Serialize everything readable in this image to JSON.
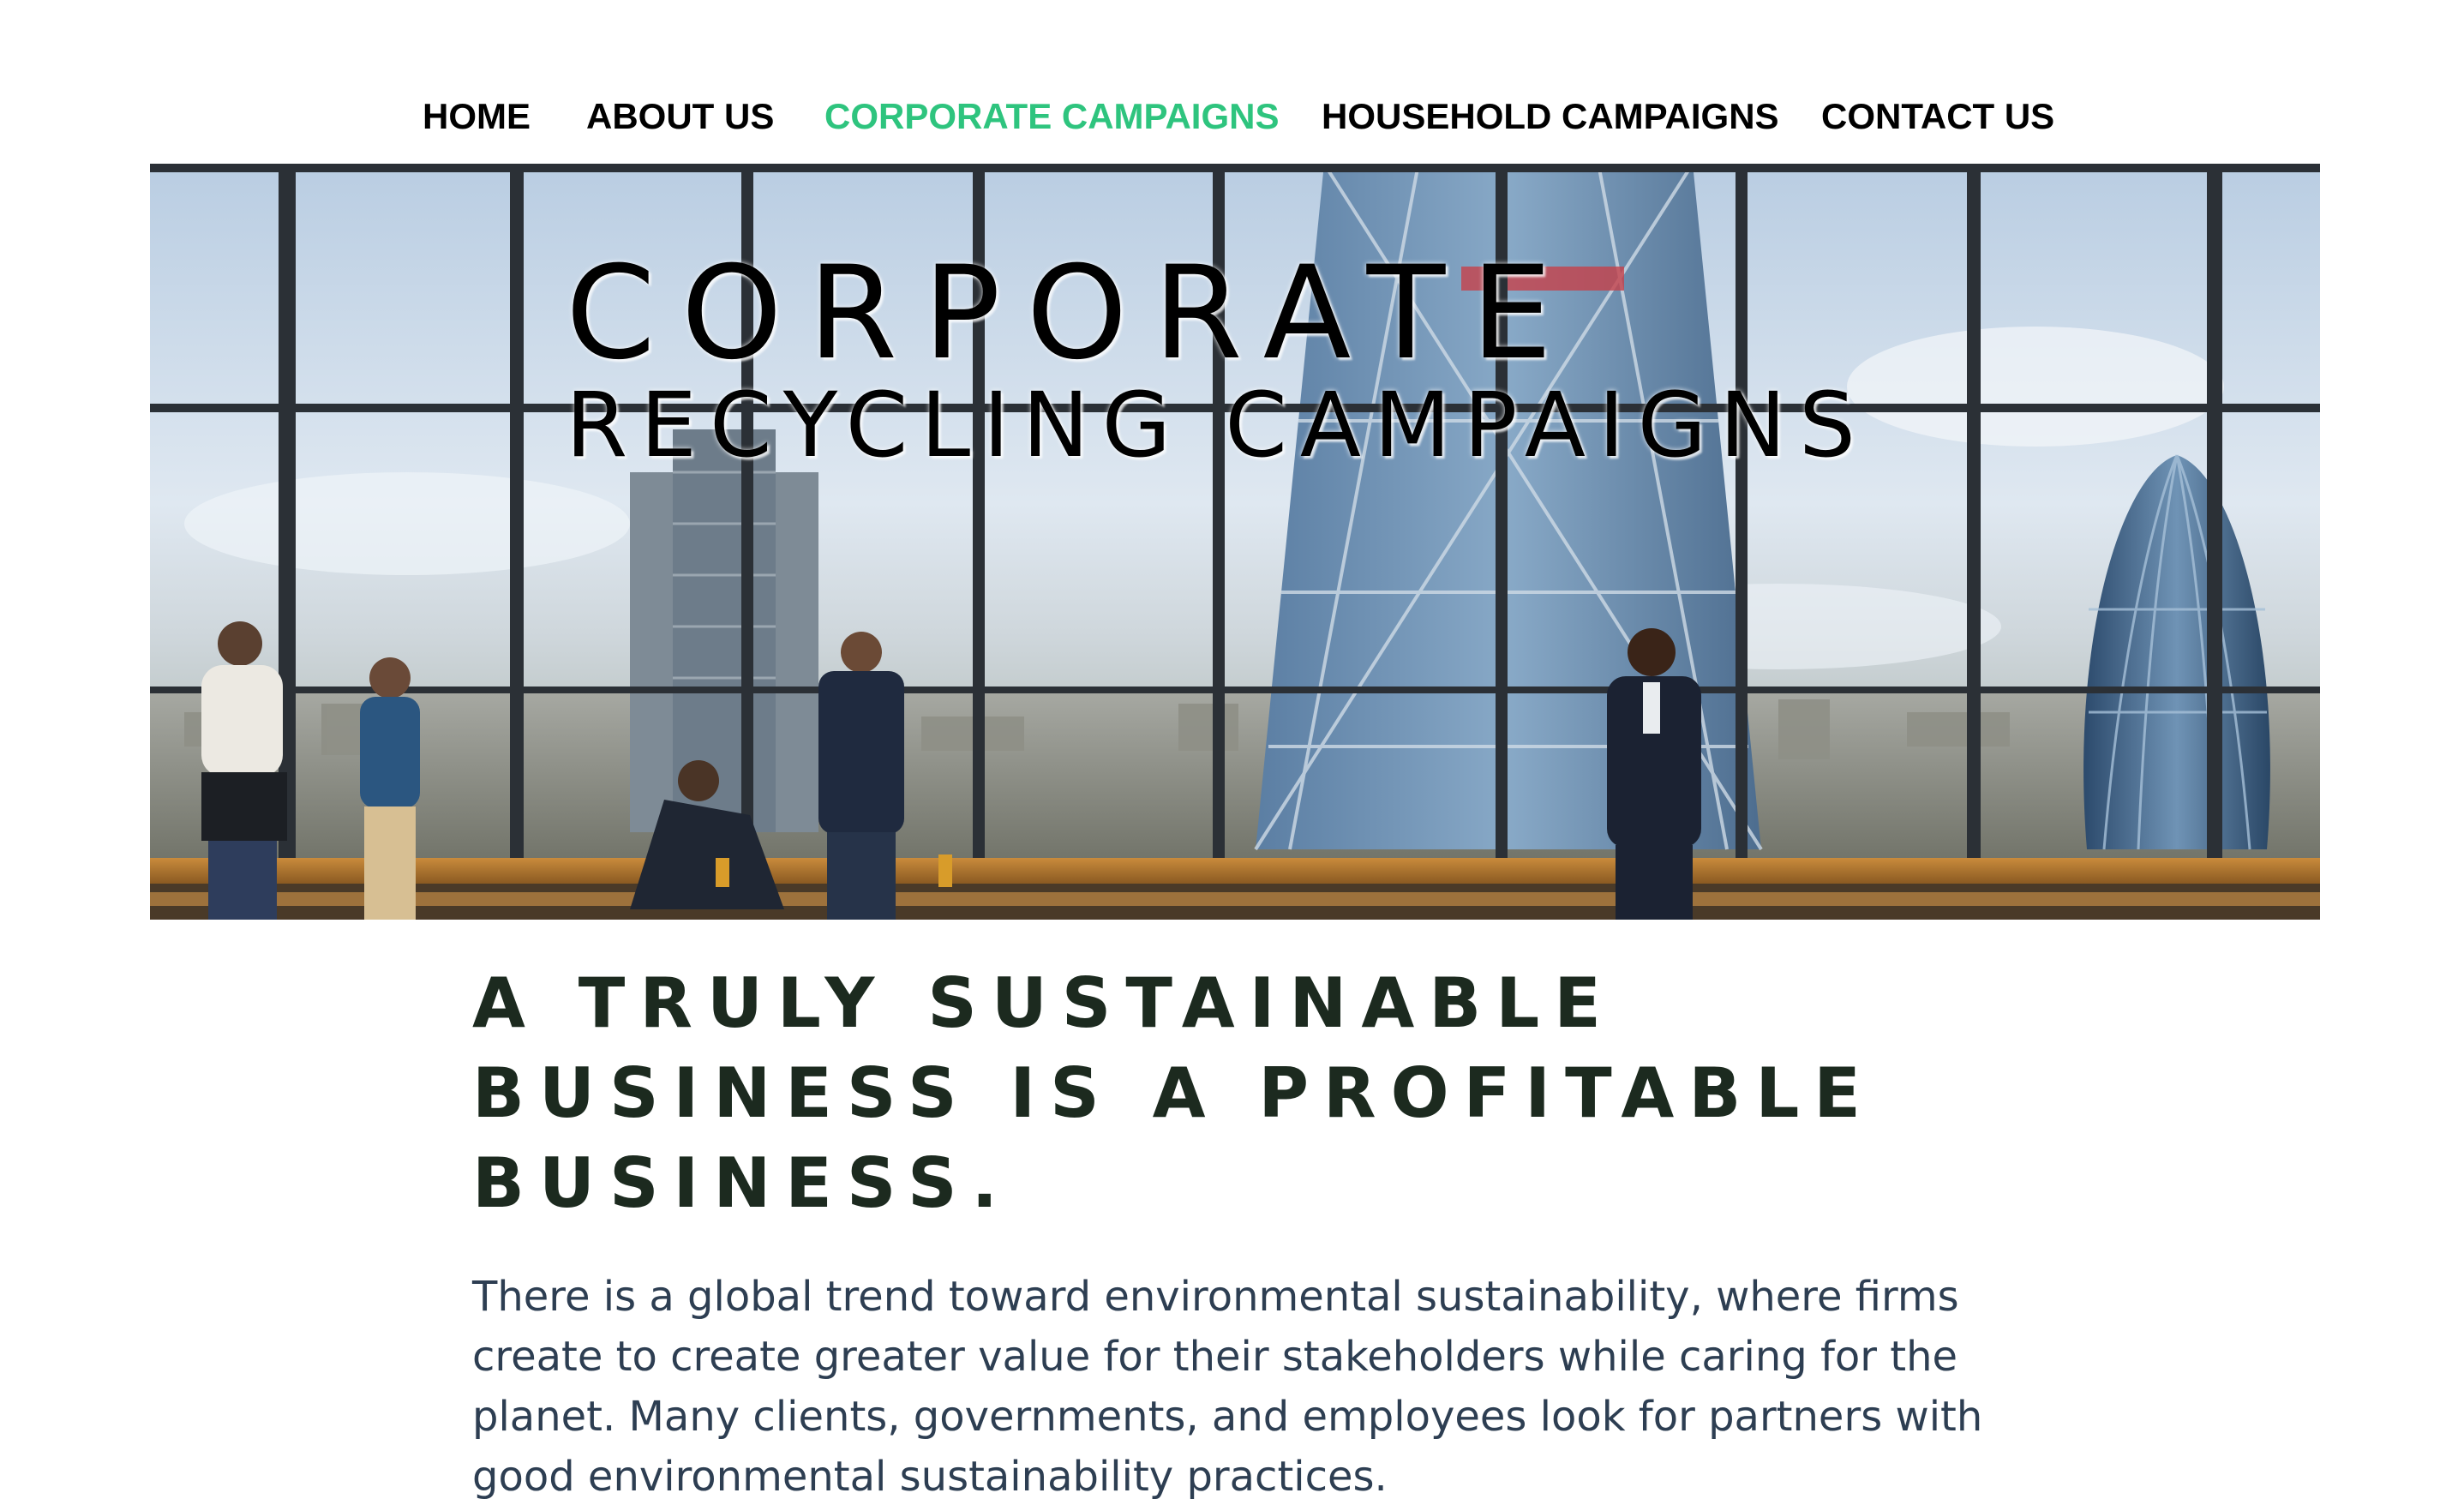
{
  "nav": {
    "items": [
      {
        "label": "HOME",
        "active": false
      },
      {
        "label": "ABOUT US",
        "active": false
      },
      {
        "label": "CORPORATE CAMPAIGNS",
        "active": true
      },
      {
        "label": "HOUSEHOLD CAMPAIGNS",
        "active": false
      },
      {
        "label": "CONTACT US",
        "active": false
      }
    ],
    "active_color": "#2ec47e",
    "text_color": "#000000"
  },
  "hero": {
    "title_line1": "CORPORATE",
    "title_line2": "RECYCLING CAMPAIGNS"
  },
  "main": {
    "headline_lines": [
      "A TRULY SUSTAINABLE",
      "BUSINESS IS A PROFITABLE",
      "BUSINESS."
    ],
    "body_lines": [
      "There is a global trend toward environmental sustainability, where firms",
      "create to create greater value for their stakeholders while caring for the",
      "planet. Many clients, governments, and employees look for partners with",
      "good environmental sustainability practices."
    ],
    "headline_color": "#1c2a1f",
    "body_color": "#2d3e52"
  }
}
